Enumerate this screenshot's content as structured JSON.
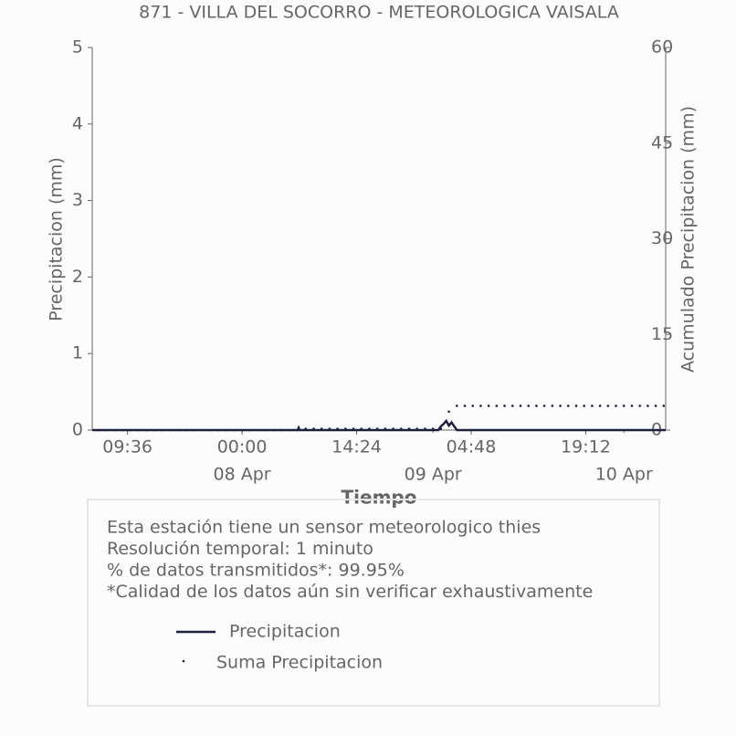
{
  "chart_data": {
    "type": "line",
    "title": "871 - VILLA DEL SOCORRO - METEOROLOGICA VAISALA",
    "xlabel": "Tiempo",
    "ylabel": "Precipitacion (mm)",
    "y2label": "Acumulado Precipitacion (mm)",
    "xlim": [
      "07 Apr 05:10",
      "10 Apr 05:15"
    ],
    "xticks": [
      {
        "value": "07 Apr 09:36",
        "label": "09:36"
      },
      {
        "value": "08 Apr 00:00",
        "label": "00:00"
      },
      {
        "value": "08 Apr 14:24",
        "label": "14:24"
      },
      {
        "value": "09 Apr 04:48",
        "label": "04:48"
      },
      {
        "value": "09 Apr 19:12",
        "label": "19:12"
      }
    ],
    "date_ticks": [
      {
        "value": "08 Apr 00:00",
        "label": "08 Apr"
      },
      {
        "value": "09 Apr 00:00",
        "label": "09 Apr"
      },
      {
        "value": "10 Apr 00:00",
        "label": "10 Apr"
      }
    ],
    "ylim": [
      0,
      5
    ],
    "yticks": [
      0,
      1,
      2,
      3,
      4,
      5
    ],
    "y2lim": [
      0,
      60
    ],
    "y2ticks": [
      0,
      15,
      30,
      45,
      60
    ],
    "series": [
      {
        "name": "Precipitacion",
        "color": "#1f2041",
        "style": "line",
        "x": [
          "07 Apr 05:10",
          "08 Apr 07:00",
          "08 Apr 07:07",
          "08 Apr 07:15",
          "09 Apr 00:40",
          "09 Apr 01:00",
          "09 Apr 01:20",
          "09 Apr 01:40",
          "09 Apr 02:00",
          "09 Apr 02:20",
          "09 Apr 02:40",
          "09 Apr 03:00",
          "10 Apr 05:15"
        ],
        "values": [
          0,
          0,
          0.03,
          0,
          0,
          0.05,
          0.08,
          0.12,
          0.06,
          0.1,
          0.05,
          0,
          0
        ]
      },
      {
        "name": "Suma Precipitacion",
        "color": "#1f2041",
        "style": "dots",
        "axis": "y2",
        "x": [
          "07 Apr 06:00",
          "07 Apr 07:00",
          "07 Apr 08:00",
          "07 Apr 09:00",
          "07 Apr 10:00",
          "07 Apr 11:00",
          "07 Apr 12:00",
          "07 Apr 13:00",
          "07 Apr 14:00",
          "07 Apr 15:00",
          "07 Apr 16:00",
          "07 Apr 17:00",
          "07 Apr 18:00",
          "07 Apr 19:00",
          "07 Apr 20:00",
          "07 Apr 21:00",
          "07 Apr 22:00",
          "07 Apr 23:00",
          "08 Apr 00:00",
          "08 Apr 01:00",
          "08 Apr 02:00",
          "08 Apr 03:00",
          "08 Apr 04:00",
          "08 Apr 05:00",
          "08 Apr 06:00",
          "08 Apr 07:00",
          "08 Apr 08:00",
          "08 Apr 09:00",
          "08 Apr 10:00",
          "08 Apr 11:00",
          "08 Apr 12:00",
          "08 Apr 13:00",
          "08 Apr 14:00",
          "08 Apr 15:00",
          "08 Apr 16:00",
          "08 Apr 17:00",
          "08 Apr 18:00",
          "08 Apr 19:00",
          "08 Apr 20:00",
          "08 Apr 21:00",
          "08 Apr 22:00",
          "08 Apr 23:00",
          "09 Apr 00:00",
          "09 Apr 01:00",
          "09 Apr 02:00",
          "09 Apr 03:00",
          "09 Apr 04:00",
          "09 Apr 05:00",
          "09 Apr 06:00",
          "09 Apr 07:00",
          "09 Apr 08:00",
          "09 Apr 09:00",
          "09 Apr 10:00",
          "09 Apr 11:00",
          "09 Apr 12:00",
          "09 Apr 13:00",
          "09 Apr 14:00",
          "09 Apr 15:00",
          "09 Apr 16:00",
          "09 Apr 17:00",
          "09 Apr 18:00",
          "09 Apr 19:00",
          "09 Apr 20:00",
          "09 Apr 21:00",
          "09 Apr 22:00",
          "09 Apr 23:00",
          "10 Apr 00:00",
          "10 Apr 01:00",
          "10 Apr 02:00",
          "10 Apr 03:00",
          "10 Apr 04:00",
          "10 Apr 05:00"
        ],
        "values": [
          0,
          0,
          0,
          0,
          0,
          0,
          0,
          0,
          0,
          0,
          0,
          0,
          0,
          0,
          0,
          0,
          0,
          0,
          0,
          0,
          0,
          0,
          0,
          0,
          0,
          0,
          0.2,
          0.2,
          0.2,
          0.2,
          0.2,
          0.2,
          0.2,
          0.2,
          0.2,
          0.2,
          0.2,
          0.2,
          0.2,
          0.2,
          0.2,
          0.2,
          0.2,
          0.2,
          2.9,
          3.8,
          3.8,
          3.8,
          3.8,
          3.8,
          3.8,
          3.8,
          3.8,
          3.8,
          3.8,
          3.8,
          3.8,
          3.8,
          3.8,
          3.8,
          3.8,
          3.8,
          3.8,
          3.8,
          3.8,
          3.8,
          3.8,
          3.8,
          3.8,
          3.8,
          3.8,
          3.8
        ]
      }
    ],
    "notes": [
      "Esta estación tiene un sensor meteorologico thies",
      "Resolución temporal: 1 minuto",
      "% de datos transmitidos*: 99.95%",
      "*Calidad de los datos aún sin verificar exhaustivamente"
    ]
  }
}
